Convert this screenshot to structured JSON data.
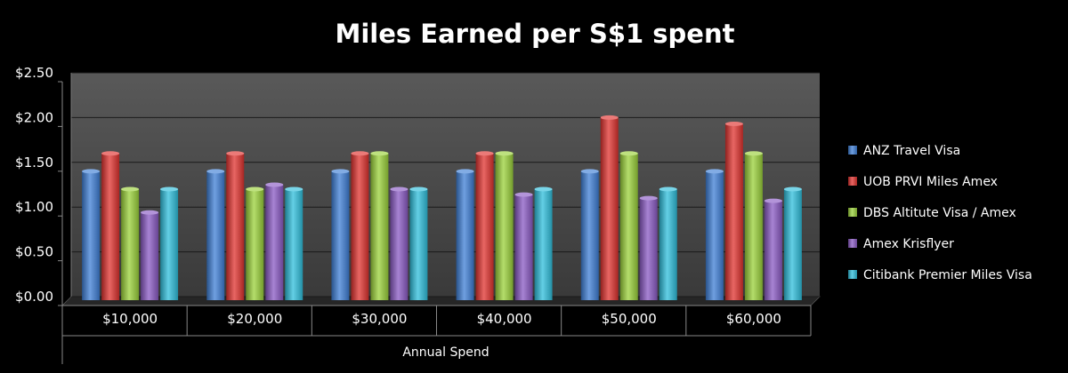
{
  "chart_data": {
    "type": "bar",
    "title": "Miles Earned per S$1 spent",
    "xlabel": "Annual Spend",
    "ylabel": "",
    "categories": [
      "$10,000",
      "$20,000",
      "$30,000",
      "$40,000",
      "$50,000",
      "$60,000"
    ],
    "ylim": [
      0,
      2.5
    ],
    "yticks": [
      0,
      0.5,
      1.0,
      1.5,
      2.0,
      2.5
    ],
    "ytick_labels": [
      "$0.00",
      "$0.50",
      "$1.00",
      "$1.50",
      "$2.00",
      "$2.50"
    ],
    "grid": true,
    "legend_position": "right",
    "series": [
      {
        "name": "ANZ Travel Visa",
        "color": "#3f7fd6",
        "values": [
          1.4,
          1.4,
          1.4,
          1.4,
          1.4,
          1.4
        ]
      },
      {
        "name": "UOB PRVI Miles Amex",
        "color": "#e0332f",
        "values": [
          1.6,
          1.6,
          1.6,
          1.6,
          2.0,
          1.93
        ]
      },
      {
        "name": "DBS Altitute Visa / Amex",
        "color": "#9bd13a",
        "values": [
          1.2,
          1.2,
          1.6,
          1.6,
          1.6,
          1.6
        ]
      },
      {
        "name": "Amex Krisflyer",
        "color": "#8a5ac4",
        "values": [
          0.94,
          1.25,
          1.2,
          1.14,
          1.1,
          1.07
        ]
      },
      {
        "name": "Citibank Premier Miles Visa",
        "color": "#2fbfdc",
        "values": [
          1.2,
          1.2,
          1.2,
          1.2,
          1.2,
          1.2
        ]
      }
    ]
  }
}
